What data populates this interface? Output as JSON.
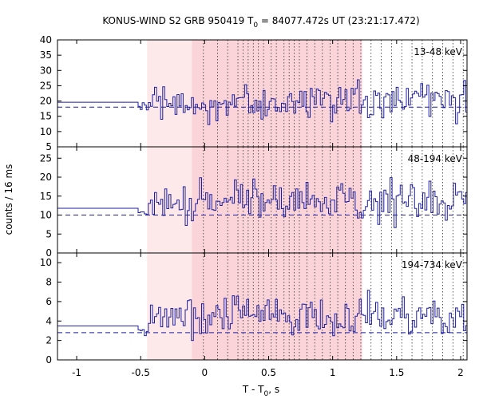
{
  "chart_data": {
    "type": "line",
    "title_parts": {
      "pre": "KONUS-WIND S2 GRB 950419 T",
      "sub": "0",
      "post": " = 84077.472s UT (23:21:17.472)"
    },
    "xlabel_parts": {
      "pre": "T - T",
      "sub": "0",
      "post": ", s"
    },
    "ylabel": "counts / 16 ms",
    "xlim": [
      -1.15,
      2.05
    ],
    "x_ticks": [
      -1,
      -0.5,
      0,
      0.5,
      1,
      1.5,
      2
    ],
    "x_tick_labels": [
      "-1",
      "-0.5",
      "0",
      "0.5",
      "1",
      "1.5",
      "2"
    ],
    "light_shade_range": [
      -0.45,
      -0.1
    ],
    "dark_shade_range": [
      -0.1,
      1.23
    ],
    "dotted_lines_x": [
      -0.01,
      0.1,
      0.18,
      0.26,
      0.3,
      0.34,
      0.38,
      0.42,
      0.46,
      0.52,
      0.56,
      0.62,
      0.66,
      0.7,
      0.74,
      0.8,
      0.86,
      0.92,
      0.98,
      1.04,
      1.1,
      1.16,
      1.22,
      1.3,
      1.38,
      1.46,
      1.54,
      1.62,
      1.7,
      1.78,
      1.86,
      1.94,
      2.02
    ],
    "series_color": "#1f1f9f",
    "shade_light_color": "#fde9ea",
    "shade_dark_color": "#fad4d8",
    "panels": [
      {
        "label": "13-48 keV",
        "ylim": [
          5,
          40
        ],
        "y_ticks": [
          5,
          10,
          15,
          20,
          25,
          30,
          35,
          40
        ],
        "background": 18,
        "pre_trigger_level": 19.6,
        "mean": 20
      },
      {
        "label": "48-194 keV",
        "ylim": [
          0,
          28
        ],
        "y_ticks": [
          0,
          5,
          10,
          15,
          20,
          25
        ],
        "background": 10,
        "pre_trigger_level": 11.8,
        "mean": 13.5
      },
      {
        "label": "194-734 keV",
        "ylim": [
          0,
          11
        ],
        "y_ticks": [
          0,
          2,
          4,
          6,
          8,
          10
        ],
        "background": 2.8,
        "pre_trigger_level": 3.5,
        "mean": 4.6
      }
    ],
    "bin_width_s": 0.016,
    "data_start_x": -0.52
  }
}
